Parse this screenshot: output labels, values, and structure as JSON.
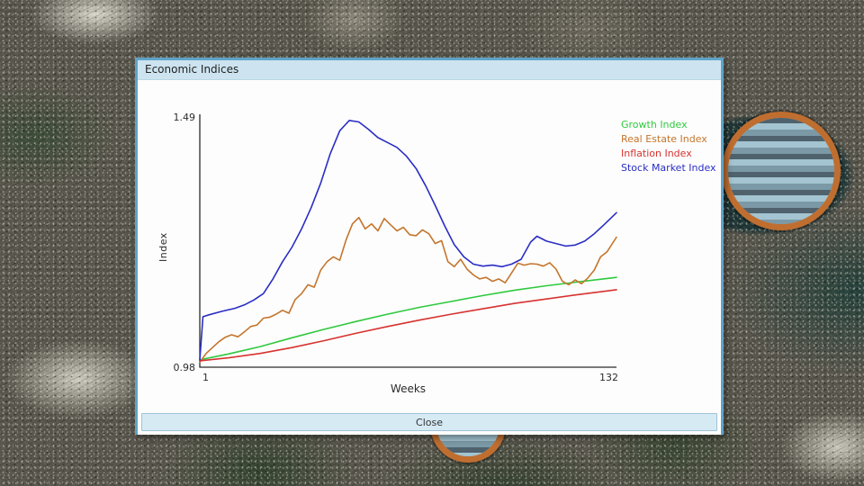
{
  "window": {
    "title": "Economic Indices",
    "close_label": "Close"
  },
  "colors": {
    "dialog_border": "#5ea3c8",
    "titlebar_bg": "#cde4f0",
    "close_button_bg": "#d6eaf4",
    "map_poi_ring": "#bf6e30",
    "axis": "#2b2b2b"
  },
  "chart_data": {
    "type": "line",
    "title": "",
    "xlabel": "Weeks",
    "ylabel": "Index",
    "xlim": [
      1,
      132
    ],
    "ylim": [
      0.98,
      1.49
    ],
    "x_tick_labels": [
      "1",
      "132"
    ],
    "y_tick_labels": [
      "0.98",
      "1.49"
    ],
    "grid": false,
    "legend_position": "top-right",
    "series": [
      {
        "name": "Growth Index",
        "color": "#2fc93e",
        "x": [
          1,
          10,
          20,
          30,
          40,
          50,
          60,
          70,
          80,
          90,
          100,
          110,
          120,
          132
        ],
        "values": [
          0.995,
          1.007,
          1.022,
          1.04,
          1.057,
          1.073,
          1.088,
          1.102,
          1.114,
          1.126,
          1.137,
          1.146,
          1.154,
          1.163
        ]
      },
      {
        "name": "Real Estate Index",
        "color": "#c4752c",
        "x": [
          1,
          3,
          5,
          7,
          9,
          11,
          13,
          15,
          17,
          19,
          21,
          23,
          25,
          27,
          29,
          31,
          33,
          35,
          37,
          39,
          41,
          43,
          45,
          47,
          49,
          51,
          53,
          55,
          57,
          59,
          61,
          63,
          65,
          67,
          69,
          71,
          73,
          75,
          77,
          79,
          81,
          83,
          85,
          87,
          89,
          91,
          93,
          95,
          97,
          99,
          101,
          103,
          105,
          107,
          109,
          111,
          113,
          115,
          117,
          119,
          121,
          123,
          125,
          127,
          129,
          132
        ],
        "values": [
          0.99,
          1.008,
          1.02,
          1.032,
          1.041,
          1.046,
          1.042,
          1.052,
          1.063,
          1.066,
          1.08,
          1.082,
          1.088,
          1.096,
          1.09,
          1.118,
          1.13,
          1.148,
          1.143,
          1.178,
          1.195,
          1.205,
          1.198,
          1.24,
          1.272,
          1.285,
          1.262,
          1.272,
          1.258,
          1.283,
          1.27,
          1.258,
          1.265,
          1.25,
          1.248,
          1.26,
          1.252,
          1.232,
          1.238,
          1.195,
          1.185,
          1.2,
          1.18,
          1.168,
          1.16,
          1.163,
          1.155,
          1.16,
          1.152,
          1.172,
          1.192,
          1.188,
          1.191,
          1.19,
          1.186,
          1.193,
          1.18,
          1.155,
          1.148,
          1.158,
          1.15,
          1.162,
          1.178,
          1.205,
          1.215,
          1.245
        ]
      },
      {
        "name": "Inflation Index",
        "color": "#d63330",
        "x": [
          1,
          10,
          20,
          30,
          40,
          50,
          60,
          70,
          80,
          90,
          100,
          110,
          120,
          132
        ],
        "values": [
          0.993,
          0.999,
          1.008,
          1.02,
          1.034,
          1.049,
          1.063,
          1.076,
          1.088,
          1.099,
          1.11,
          1.119,
          1.128,
          1.138
        ]
      },
      {
        "name": "Stock Market Index",
        "color": "#2a2ec4",
        "x": [
          1,
          2,
          4,
          8,
          12,
          15,
          18,
          21,
          24,
          27,
          30,
          33,
          36,
          39,
          42,
          45,
          48,
          51,
          54,
          57,
          60,
          63,
          66,
          69,
          72,
          75,
          78,
          81,
          84,
          87,
          90,
          93,
          96,
          99,
          102,
          105,
          107,
          110,
          113,
          116,
          119,
          122,
          125,
          128,
          132
        ],
        "values": [
          0.995,
          1.083,
          1.087,
          1.094,
          1.1,
          1.107,
          1.117,
          1.13,
          1.16,
          1.195,
          1.225,
          1.262,
          1.305,
          1.355,
          1.415,
          1.462,
          1.483,
          1.48,
          1.465,
          1.448,
          1.438,
          1.428,
          1.41,
          1.385,
          1.35,
          1.31,
          1.268,
          1.23,
          1.205,
          1.19,
          1.186,
          1.188,
          1.185,
          1.19,
          1.2,
          1.235,
          1.247,
          1.237,
          1.232,
          1.227,
          1.229,
          1.237,
          1.252,
          1.27,
          1.295
        ]
      }
    ]
  }
}
